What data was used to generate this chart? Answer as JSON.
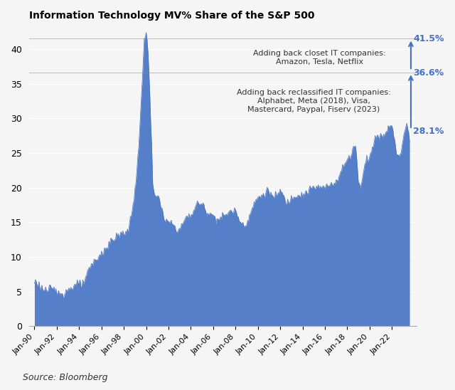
{
  "title": "Information Technology MV% Share of the S&P 500",
  "source_text": "Source: Bloomberg",
  "fill_color": "#4472C4",
  "line_color": "#4472C4",
  "background_color": "#FFFFFF",
  "ylim": [
    0,
    43
  ],
  "yticks": [
    0,
    5,
    10,
    15,
    20,
    25,
    30,
    35,
    40
  ],
  "annotation_28": {
    "value": 28.1,
    "label": "28.1%"
  },
  "annotation_36": {
    "value": 36.6,
    "label": "36.6%"
  },
  "annotation_41": {
    "value": 41.5,
    "label": "41.5%"
  },
  "annotation_text_reclassified": "Adding back reclassified IT companies:\nAlphabet, Meta (2018), Visa,\nMastercard, Paypal, Fiserv (2023)",
  "annotation_text_closet": "Adding back closet IT companies:\nAmazon, Tesla, Netflix",
  "x_start_year": 1990,
  "x_end_year": 2024,
  "xtick_years": [
    1990,
    1992,
    1994,
    1996,
    1998,
    2000,
    2002,
    2004,
    2006,
    2008,
    2010,
    2012,
    2014,
    2016,
    2018,
    2020,
    2022
  ],
  "xtick_labels": [
    "Jan-90",
    "Jan-92",
    "Jan-94",
    "Jan-96",
    "Jan-98",
    "Jan-00",
    "Jan-02",
    "Jan-04",
    "Jan-06",
    "Jan-08",
    "Jan-10",
    "Jan-12",
    "Jan-14",
    "Jan-16",
    "Jan-18",
    "Jan-20",
    "Jan-22"
  ]
}
